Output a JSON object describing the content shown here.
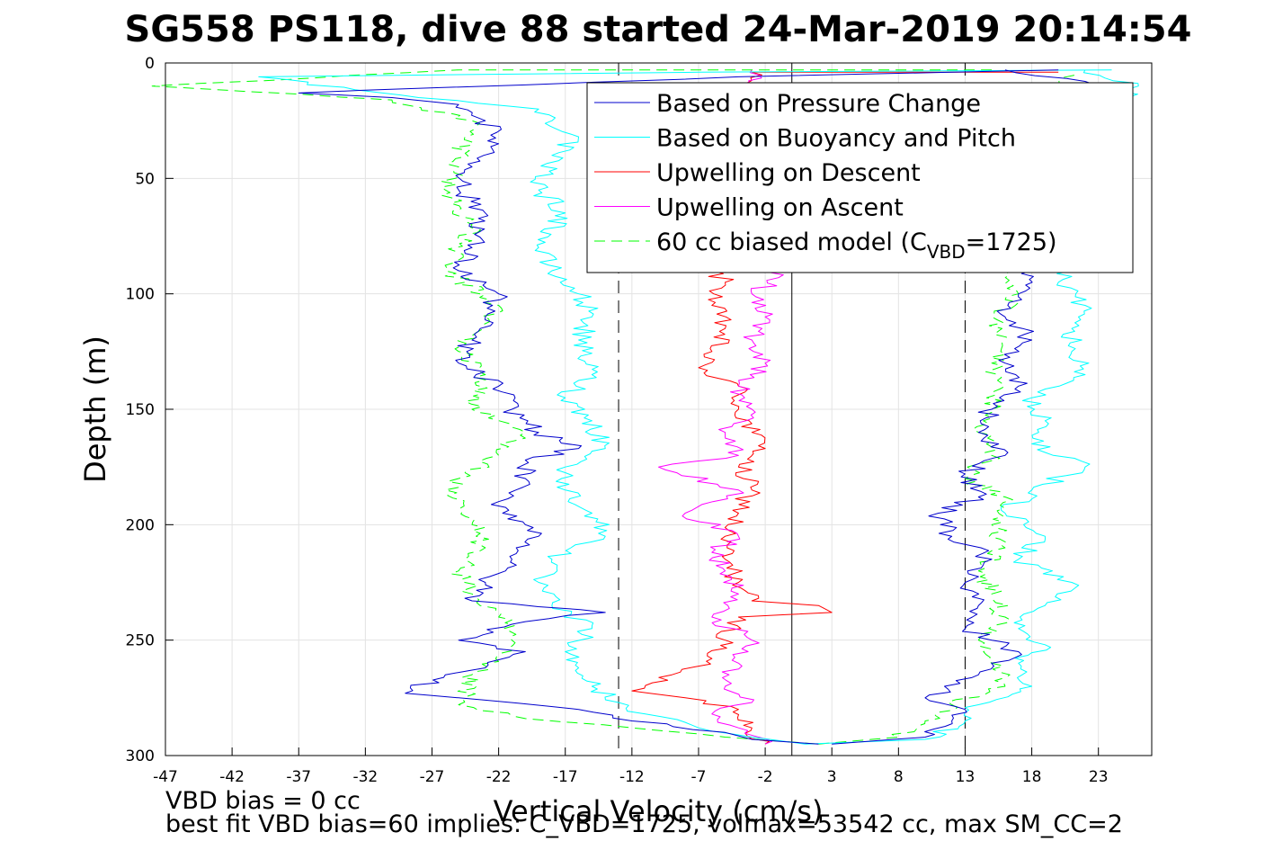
{
  "chart_data": {
    "type": "line",
    "title": "SG558 PS118, dive 88 started 24-Mar-2019 20:14:54",
    "xlabel": "Vertical Velocity (cm/s)",
    "ylabel": "Depth (m)",
    "xlim": [
      -47,
      27
    ],
    "ylim": [
      0,
      300
    ],
    "y_reversed": true,
    "grid": true,
    "legend_position": "top-right",
    "xticks": [
      -47,
      -42,
      -37,
      -32,
      -27,
      -22,
      -17,
      -12,
      -7,
      -2,
      3,
      8,
      13,
      18,
      23
    ],
    "yticks": [
      0,
      50,
      100,
      150,
      200,
      250,
      300
    ],
    "reference_lines": [
      {
        "x": -13,
        "style": "dashed"
      },
      {
        "x": 0,
        "style": "solid"
      },
      {
        "x": 13,
        "style": "dashed"
      }
    ],
    "series": [
      {
        "name": "Based on Pressure Change",
        "color": "#0000cc",
        "dash": "solid",
        "down": [
          [
            20,
            3
          ],
          [
            -4,
            6
          ],
          [
            -37,
            13
          ],
          [
            -30,
            15
          ],
          [
            -25,
            18
          ],
          [
            -23,
            25
          ],
          [
            -22,
            35
          ],
          [
            -24,
            45
          ],
          [
            -25,
            55
          ],
          [
            -23,
            65
          ],
          [
            -24,
            80
          ],
          [
            -25,
            90
          ],
          [
            -22,
            100
          ],
          [
            -23,
            110
          ],
          [
            -24,
            120
          ],
          [
            -25,
            130
          ],
          [
            -22,
            140
          ],
          [
            -21,
            150
          ],
          [
            -19,
            160
          ],
          [
            -16,
            167
          ],
          [
            -20,
            172
          ],
          [
            -20,
            180
          ],
          [
            -22,
            190
          ],
          [
            -20,
            200
          ],
          [
            -19,
            205
          ],
          [
            -21,
            215
          ],
          [
            -23,
            225
          ],
          [
            -24,
            233
          ],
          [
            -14,
            238
          ],
          [
            -20,
            242
          ],
          [
            -25,
            250
          ],
          [
            -20,
            255
          ],
          [
            -23,
            262
          ],
          [
            -26,
            265
          ],
          [
            -29,
            273
          ],
          [
            -23,
            276
          ],
          [
            -16,
            280
          ],
          [
            -12,
            285
          ],
          [
            -5,
            290
          ],
          [
            -3,
            293
          ],
          [
            2,
            295
          ]
        ],
        "up": [
          [
            3,
            295
          ],
          [
            10,
            292
          ],
          [
            12,
            285
          ],
          [
            13,
            280
          ],
          [
            10,
            275
          ],
          [
            14,
            265
          ],
          [
            17,
            255
          ],
          [
            15,
            250
          ],
          [
            13,
            245
          ],
          [
            14,
            235
          ],
          [
            13,
            225
          ],
          [
            15,
            215
          ],
          [
            12,
            205
          ],
          [
            11,
            195
          ],
          [
            14,
            188
          ],
          [
            13,
            178
          ],
          [
            16,
            170
          ],
          [
            14,
            160
          ],
          [
            15,
            150
          ],
          [
            17,
            140
          ],
          [
            16,
            130
          ],
          [
            18,
            120
          ],
          [
            16,
            110
          ],
          [
            17,
            100
          ],
          [
            18,
            90
          ],
          [
            17,
            80
          ],
          [
            20,
            70
          ],
          [
            18,
            50
          ],
          [
            19,
            30
          ],
          [
            22,
            8
          ],
          [
            16,
            3
          ]
        ]
      },
      {
        "name": "Based on Buoyancy and Pitch",
        "color": "#00ffff",
        "dash": "solid",
        "down": [
          [
            24,
            3
          ],
          [
            -7,
            4
          ],
          [
            -40,
            6
          ],
          [
            -28,
            15
          ],
          [
            -19,
            20
          ],
          [
            -18,
            25
          ],
          [
            -16,
            32
          ],
          [
            -18,
            40
          ],
          [
            -19,
            55
          ],
          [
            -17,
            65
          ],
          [
            -19,
            80
          ],
          [
            -18,
            90
          ],
          [
            -16,
            100
          ],
          [
            -15,
            110
          ],
          [
            -16,
            120
          ],
          [
            -15,
            135
          ],
          [
            -17,
            145
          ],
          [
            -15,
            155
          ],
          [
            -14,
            167
          ],
          [
            -17,
            175
          ],
          [
            -17,
            185
          ],
          [
            -15,
            195
          ],
          [
            -14,
            205
          ],
          [
            -18,
            215
          ],
          [
            -19,
            225
          ],
          [
            -18,
            235
          ],
          [
            -15,
            245
          ],
          [
            -17,
            255
          ],
          [
            -16,
            262
          ],
          [
            -15,
            270
          ],
          [
            -13,
            277
          ],
          [
            -11,
            282
          ],
          [
            -7,
            288
          ],
          [
            -3,
            292
          ],
          [
            1,
            295
          ]
        ],
        "up": [
          [
            1,
            295
          ],
          [
            10,
            293
          ],
          [
            13,
            285
          ],
          [
            14,
            278
          ],
          [
            18,
            270
          ],
          [
            17,
            260
          ],
          [
            19,
            252
          ],
          [
            17,
            245
          ],
          [
            19,
            235
          ],
          [
            21,
            225
          ],
          [
            17,
            215
          ],
          [
            19,
            205
          ],
          [
            16,
            195
          ],
          [
            18,
            185
          ],
          [
            22,
            175
          ],
          [
            18,
            165
          ],
          [
            19,
            155
          ],
          [
            18,
            145
          ],
          [
            22,
            135
          ],
          [
            21,
            125
          ],
          [
            21,
            115
          ],
          [
            22,
            105
          ],
          [
            20,
            95
          ],
          [
            21,
            90
          ],
          [
            20,
            60
          ],
          [
            21,
            30
          ],
          [
            26,
            10
          ],
          [
            22,
            3
          ]
        ]
      },
      {
        "name": "Upwelling on Descent",
        "color": "#ff0000",
        "dash": "solid",
        "down": [
          [
            20,
            4
          ],
          [
            -3,
            4
          ],
          [
            -6,
            90
          ],
          [
            -5,
            95
          ],
          [
            -6,
            105
          ],
          [
            -5,
            115
          ],
          [
            -6,
            125
          ],
          [
            -7,
            132
          ],
          [
            -4,
            140
          ],
          [
            -4,
            150
          ],
          [
            -3,
            160
          ],
          [
            -2,
            167
          ],
          [
            -4,
            175
          ],
          [
            -3,
            185
          ],
          [
            -4,
            195
          ],
          [
            -5,
            205
          ],
          [
            -5,
            215
          ],
          [
            -4,
            225
          ],
          [
            -3,
            233
          ],
          [
            2,
            235
          ],
          [
            3,
            238
          ],
          [
            -4,
            240
          ],
          [
            -5,
            250
          ],
          [
            -6,
            258
          ],
          [
            -9,
            265
          ],
          [
            -12,
            272
          ],
          [
            -8,
            275
          ],
          [
            -4,
            280
          ],
          [
            -3,
            288
          ],
          [
            -2,
            295
          ]
        ]
      },
      {
        "name": "Upwelling on Ascent",
        "color": "#ff00ff",
        "dash": "solid",
        "down": [
          [
            -2,
            295
          ],
          [
            -4,
            288
          ],
          [
            -6,
            282
          ],
          [
            -3,
            277
          ],
          [
            -5,
            270
          ],
          [
            -4,
            260
          ],
          [
            -3,
            250
          ],
          [
            -6,
            240
          ],
          [
            -4,
            230
          ],
          [
            -5,
            220
          ],
          [
            -6,
            212
          ],
          [
            -4,
            205
          ],
          [
            -8,
            195
          ],
          [
            -4,
            185
          ],
          [
            -10,
            175
          ],
          [
            -4,
            170
          ],
          [
            -5,
            160
          ],
          [
            -3,
            150
          ],
          [
            -4,
            140
          ],
          [
            -2,
            130
          ],
          [
            -3,
            120
          ],
          [
            -2,
            110
          ],
          [
            -3,
            100
          ],
          [
            -1,
            93
          ],
          [
            -1,
            30
          ],
          [
            -3,
            3
          ]
        ]
      },
      {
        "name": "60 cc biased model (C",
        "name_sub": "VBD",
        "name_suffix": "=1725)",
        "color": "#00ff00",
        "dash": "dashed",
        "down": [
          [
            15,
            3
          ],
          [
            -25,
            3
          ],
          [
            -48,
            10
          ],
          [
            -30,
            16
          ],
          [
            -24,
            25
          ],
          [
            -25,
            45
          ],
          [
            -26,
            55
          ],
          [
            -24,
            70
          ],
          [
            -26,
            90
          ],
          [
            -22,
            105
          ],
          [
            -25,
            125
          ],
          [
            -23,
            135
          ],
          [
            -24,
            150
          ],
          [
            -20,
            160
          ],
          [
            -22,
            170
          ],
          [
            -25,
            180
          ],
          [
            -26,
            185
          ],
          [
            -24,
            200
          ],
          [
            -23,
            210
          ],
          [
            -25,
            220
          ],
          [
            -24,
            230
          ],
          [
            -22,
            240
          ],
          [
            -21,
            250
          ],
          [
            -24,
            265
          ],
          [
            -25,
            278
          ],
          [
            -20,
            284
          ],
          [
            -12,
            288
          ],
          [
            -5,
            292
          ],
          [
            2,
            295
          ]
        ],
        "up": [
          [
            2,
            295
          ],
          [
            8,
            292
          ],
          [
            10,
            285
          ],
          [
            12,
            278
          ],
          [
            16,
            270
          ],
          [
            15,
            260
          ],
          [
            14,
            250
          ],
          [
            16,
            240
          ],
          [
            15,
            230
          ],
          [
            14,
            220
          ],
          [
            16,
            210
          ],
          [
            15,
            200
          ],
          [
            16,
            188
          ],
          [
            13,
            180
          ],
          [
            15,
            170
          ],
          [
            14,
            160
          ],
          [
            15,
            150
          ],
          [
            16,
            140
          ],
          [
            15,
            130
          ],
          [
            16,
            120
          ],
          [
            15,
            110
          ],
          [
            17,
            100
          ],
          [
            16,
            80
          ],
          [
            17,
            40
          ],
          [
            21,
            4
          ]
        ]
      }
    ],
    "legend": [
      {
        "text": "Based on Pressure Change"
      },
      {
        "text": "Based on Buoyancy and Pitch"
      },
      {
        "text": "Upwelling on Descent"
      },
      {
        "text": "Upwelling on Ascent"
      },
      {
        "text": "60 cc biased model (C",
        "sub": "VBD",
        "suffix": "=1725)"
      }
    ]
  },
  "footnotes": {
    "line1": "VBD bias = 0 cc",
    "line2": "best fit VBD bias=60 implies: C_VBD=1725, volmax=53542 cc, max SM_CC=2"
  }
}
